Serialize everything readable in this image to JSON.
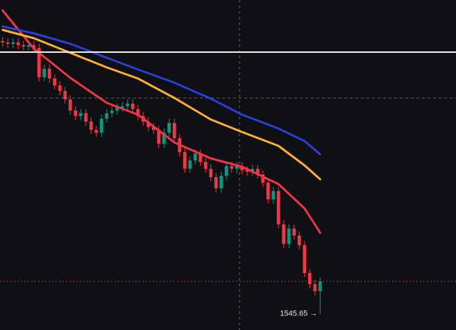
{
  "chart_data": {
    "type": "candlestick",
    "xlim": [
      -0.5,
      87.1
    ],
    "ylim": [
      1534,
      1771.5
    ],
    "up_color": "#089981",
    "down_color": "#f23645",
    "open": [
      1742,
      1741,
      1740,
      1741,
      1739,
      1738,
      1739,
      1737,
      1716,
      1722,
      1715,
      1710,
      1706,
      1700,
      1692,
      1688,
      1690,
      1684,
      1678,
      1676,
      1686,
      1690,
      1692,
      1694,
      1695,
      1697,
      1693,
      1688,
      1684,
      1680,
      1678,
      1668,
      1676,
      1683,
      1672,
      1662,
      1650,
      1656,
      1661,
      1655,
      1650,
      1644,
      1636,
      1645,
      1652,
      1650,
      1652,
      1649,
      1648,
      1650,
      1646,
      1640,
      1628,
      1634,
      1610,
      1596,
      1607,
      1602,
      1595,
      1575,
      1567,
      1562
    ],
    "high": [
      1745,
      1744,
      1744,
      1744,
      1742,
      1742,
      1742,
      1740,
      1725,
      1725,
      1718,
      1713,
      1709,
      1703,
      1695,
      1693,
      1693,
      1687,
      1681,
      1689,
      1693,
      1695,
      1697,
      1698,
      1700,
      1700,
      1696,
      1691,
      1687,
      1683,
      1681,
      1679,
      1686,
      1686,
      1675,
      1665,
      1659,
      1664,
      1664,
      1658,
      1653,
      1647,
      1648,
      1655,
      1655,
      1655,
      1655,
      1652,
      1653,
      1653,
      1649,
      1643,
      1637,
      1637,
      1613,
      1610,
      1610,
      1605,
      1598,
      1578,
      1570,
      1572
    ],
    "low": [
      1738,
      1737,
      1737,
      1736,
      1735,
      1735,
      1734,
      1713,
      1713,
      1712,
      1707,
      1703,
      1697,
      1689,
      1685,
      1685,
      1681,
      1675,
      1673,
      1673,
      1683,
      1687,
      1689,
      1691,
      1692,
      1690,
      1685,
      1681,
      1677,
      1675,
      1665,
      1665,
      1673,
      1669,
      1659,
      1647,
      1647,
      1653,
      1652,
      1647,
      1641,
      1633,
      1633,
      1642,
      1647,
      1647,
      1646,
      1645,
      1645,
      1643,
      1637,
      1625,
      1625,
      1607,
      1593,
      1593,
      1599,
      1592,
      1572,
      1564,
      1559,
      1545.65
    ],
    "close": [
      1741,
      1740,
      1741,
      1739,
      1738,
      1739,
      1737,
      1716,
      1722,
      1715,
      1710,
      1706,
      1700,
      1692,
      1688,
      1690,
      1684,
      1678,
      1676,
      1686,
      1690,
      1692,
      1694,
      1695,
      1697,
      1693,
      1688,
      1684,
      1680,
      1678,
      1668,
      1676,
      1683,
      1672,
      1662,
      1650,
      1656,
      1661,
      1655,
      1650,
      1644,
      1636,
      1645,
      1652,
      1650,
      1652,
      1649,
      1648,
      1650,
      1646,
      1640,
      1628,
      1634,
      1610,
      1596,
      1607,
      1602,
      1595,
      1575,
      1567,
      1562,
      1569
    ],
    "series": [
      {
        "color": "#f23645",
        "x": [
          0,
          6,
          13,
          20,
          26,
          33,
          40,
          46,
          53,
          58,
          61
        ],
        "values": [
          1764,
          1736.5,
          1715.5,
          1697.5,
          1689,
          1669,
          1657.5,
          1651.5,
          1639,
          1621.5,
          1604
        ]
      },
      {
        "color": "#ffb02e",
        "x": [
          0,
          6,
          13,
          20,
          26,
          33,
          40,
          46,
          53,
          58,
          61
        ],
        "values": [
          1750,
          1744,
          1733.5,
          1723,
          1715,
          1701,
          1685.5,
          1676.5,
          1666.5,
          1652.5,
          1642.5
        ]
      },
      {
        "color": "#2a3fd6",
        "x": [
          0,
          6,
          13,
          20,
          26,
          33,
          40,
          46,
          53,
          58,
          61
        ],
        "values": [
          1752.5,
          1747.5,
          1740,
          1730,
          1721.5,
          1712,
          1700.5,
          1689,
          1679,
          1670,
          1660.5
        ]
      }
    ],
    "hline": 1734,
    "crosshair": {
      "x": 45.5,
      "y": 1701
    },
    "last_price_line": true,
    "annotations": [
      {
        "text": "1545.65 →",
        "value": 1545.65
      }
    ]
  }
}
